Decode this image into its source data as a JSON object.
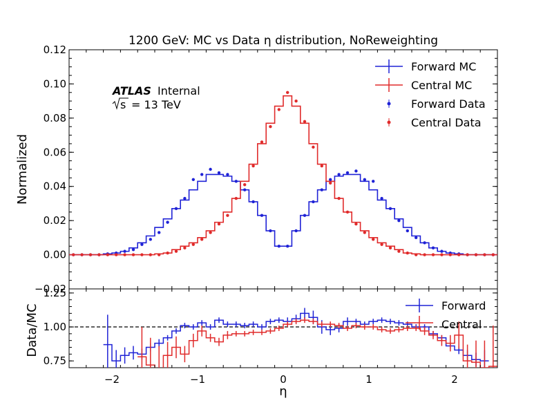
{
  "chart_data": {
    "type": "step",
    "title": "1200 GeV: MC vs Data η distribution, NoReweighting",
    "annotation": {
      "experiment": "ATLAS",
      "status": "Internal",
      "sqrt_s_symbol": "s",
      "energy": "= 13 TeV"
    },
    "xlabel": "η",
    "xlim": [
      -2.5,
      2.5
    ],
    "xticks": [
      "−2",
      "−1",
      "0",
      "1",
      "2"
    ],
    "x_edges": [
      -2.5,
      -2.4,
      -2.3,
      -2.2,
      -2.1,
      -2.0,
      -1.9,
      -1.8,
      -1.7,
      -1.6,
      -1.5,
      -1.4,
      -1.3,
      -1.2,
      -1.1,
      -1.0,
      -0.9,
      -0.8,
      -0.7,
      -0.6,
      -0.5,
      -0.4,
      -0.3,
      -0.2,
      -0.1,
      0.0,
      0.1,
      0.2,
      0.3,
      0.4,
      0.5,
      0.6,
      0.7,
      0.8,
      0.9,
      1.0,
      1.1,
      1.2,
      1.3,
      1.4,
      1.5,
      1.6,
      1.7,
      1.8,
      1.9,
      2.0,
      2.1,
      2.2,
      2.3,
      2.4,
      2.5
    ],
    "top_panel": {
      "ylabel": "Normalized",
      "ylim": [
        -0.02,
        0.12
      ],
      "yticks": [
        "−0.02",
        "0.00",
        "0.02",
        "0.04",
        "0.06",
        "0.08",
        "0.10",
        "0.12"
      ],
      "series": [
        {
          "name": "Forward MC",
          "kind": "mc",
          "color": "#1f22d6",
          "values": [
            0,
            0,
            0,
            0,
            0.0005,
            0.001,
            0.002,
            0.004,
            0.007,
            0.011,
            0.016,
            0.021,
            0.027,
            0.032,
            0.038,
            0.043,
            0.047,
            0.047,
            0.046,
            0.043,
            0.038,
            0.031,
            0.023,
            0.014,
            0.005,
            0.005,
            0.014,
            0.023,
            0.031,
            0.038,
            0.043,
            0.046,
            0.047,
            0.047,
            0.043,
            0.038,
            0.032,
            0.027,
            0.021,
            0.016,
            0.011,
            0.007,
            0.004,
            0.002,
            0.001,
            0.0005,
            0,
            0,
            0,
            0
          ]
        },
        {
          "name": "Central MC",
          "kind": "mc",
          "color": "#e02a2a",
          "values": [
            0,
            0,
            0,
            0,
            0,
            0,
            0,
            0,
            0,
            0,
            0.0005,
            0.001,
            0.003,
            0.005,
            0.007,
            0.01,
            0.014,
            0.019,
            0.025,
            0.033,
            0.043,
            0.053,
            0.065,
            0.077,
            0.087,
            0.093,
            0.087,
            0.077,
            0.065,
            0.053,
            0.043,
            0.033,
            0.025,
            0.019,
            0.014,
            0.01,
            0.007,
            0.005,
            0.003,
            0.001,
            0.0005,
            0,
            0,
            0,
            0,
            0,
            0,
            0,
            0,
            0
          ]
        },
        {
          "name": "Forward Data",
          "kind": "data",
          "color": "#1f22d6",
          "values": [
            0,
            0,
            0,
            0,
            0.0005,
            0.001,
            0.002,
            0.003,
            0.006,
            0.009,
            0.013,
            0.019,
            0.027,
            0.033,
            0.044,
            0.047,
            0.05,
            0.048,
            0.047,
            0.043,
            0.038,
            0.031,
            0.023,
            0.014,
            0.005,
            0.005,
            0.014,
            0.023,
            0.031,
            0.038,
            0.044,
            0.047,
            0.048,
            0.049,
            0.044,
            0.043,
            0.033,
            0.027,
            0.02,
            0.014,
            0.01,
            0.007,
            0.004,
            0.002,
            0.001,
            0.0005,
            0,
            0,
            0,
            0
          ]
        },
        {
          "name": "Central Data",
          "kind": "data",
          "color": "#e02a2a",
          "values": [
            0,
            0,
            0,
            0,
            0,
            0,
            0,
            0,
            0,
            0,
            0,
            0.001,
            0.002,
            0.004,
            0.006,
            0.009,
            0.013,
            0.018,
            0.023,
            0.033,
            0.041,
            0.052,
            0.066,
            0.075,
            0.085,
            0.095,
            0.09,
            0.078,
            0.063,
            0.052,
            0.042,
            0.033,
            0.025,
            0.018,
            0.013,
            0.009,
            0.006,
            0.004,
            0.002,
            0.001,
            0,
            0,
            0,
            0,
            0,
            0,
            0,
            0,
            0,
            0
          ]
        }
      ]
    },
    "bottom_panel": {
      "ylabel": "Data/MC",
      "ylim": [
        0.7,
        1.28
      ],
      "yticks": [
        "0.75",
        "1.00",
        "1.25"
      ],
      "reference_line": 1.0,
      "series": [
        {
          "name": "Forward",
          "color": "#1f22d6",
          "x_start": -2.1,
          "values": [
            0.87,
            0.75,
            0.79,
            0.81,
            0.8,
            0.85,
            0.88,
            0.92,
            0.97,
            1.01,
            1.0,
            1.03,
            1.0,
            1.05,
            1.02,
            1.02,
            1.01,
            1.02,
            1.0,
            1.04,
            1.05,
            1.04,
            1.06,
            1.1,
            1.07,
            1.0,
            0.98,
            0.99,
            1.04,
            1.04,
            1.02,
            1.04,
            1.05,
            1.04,
            1.03,
            1.02,
            1.0,
            1.0,
            0.95,
            0.92,
            0.86,
            0.83,
            0.79,
            0.76,
            0.75
          ],
          "errors": [
            0.22,
            0.08,
            0.06,
            0.05,
            0.04,
            0.03,
            0.03,
            0.02,
            0.02,
            0.02,
            0.02,
            0.02,
            0.02,
            0.02,
            0.02,
            0.02,
            0.02,
            0.02,
            0.02,
            0.02,
            0.02,
            0.03,
            0.03,
            0.04,
            0.05,
            0.05,
            0.04,
            0.03,
            0.03,
            0.02,
            0.02,
            0.02,
            0.02,
            0.02,
            0.02,
            0.02,
            0.02,
            0.02,
            0.02,
            0.02,
            0.02,
            0.03,
            0.04,
            0.05,
            0.08
          ]
        },
        {
          "name": "Central",
          "color": "#e02a2a",
          "x_start": -1.7,
          "values": [
            0.78,
            0.72,
            0.68,
            0.79,
            0.85,
            0.8,
            0.9,
            0.97,
            0.92,
            0.89,
            0.94,
            0.95,
            0.95,
            0.96,
            0.96,
            0.97,
            0.99,
            1.02,
            1.04,
            1.05,
            1.04,
            1.02,
            1.02,
            1.01,
            0.99,
            1.01,
            1.0,
            1.0,
            0.98,
            0.97,
            0.98,
            0.99,
            0.99,
            0.97,
            0.94,
            0.9,
            0.88,
            0.94,
            0.75,
            0.74,
            0.7,
            0.71
          ],
          "errors": [
            0.22,
            0.2,
            0.18,
            0.1,
            0.08,
            0.06,
            0.05,
            0.04,
            0.03,
            0.03,
            0.03,
            0.02,
            0.02,
            0.02,
            0.02,
            0.02,
            0.02,
            0.02,
            0.02,
            0.02,
            0.02,
            0.02,
            0.02,
            0.02,
            0.02,
            0.02,
            0.02,
            0.02,
            0.02,
            0.02,
            0.02,
            0.02,
            0.02,
            0.03,
            0.03,
            0.04,
            0.06,
            0.1,
            0.12,
            0.16,
            0.2,
            0.3
          ]
        }
      ]
    },
    "top_legend": {
      "placement": "top-right"
    },
    "bottom_legend": {
      "placement": "top-right"
    }
  }
}
